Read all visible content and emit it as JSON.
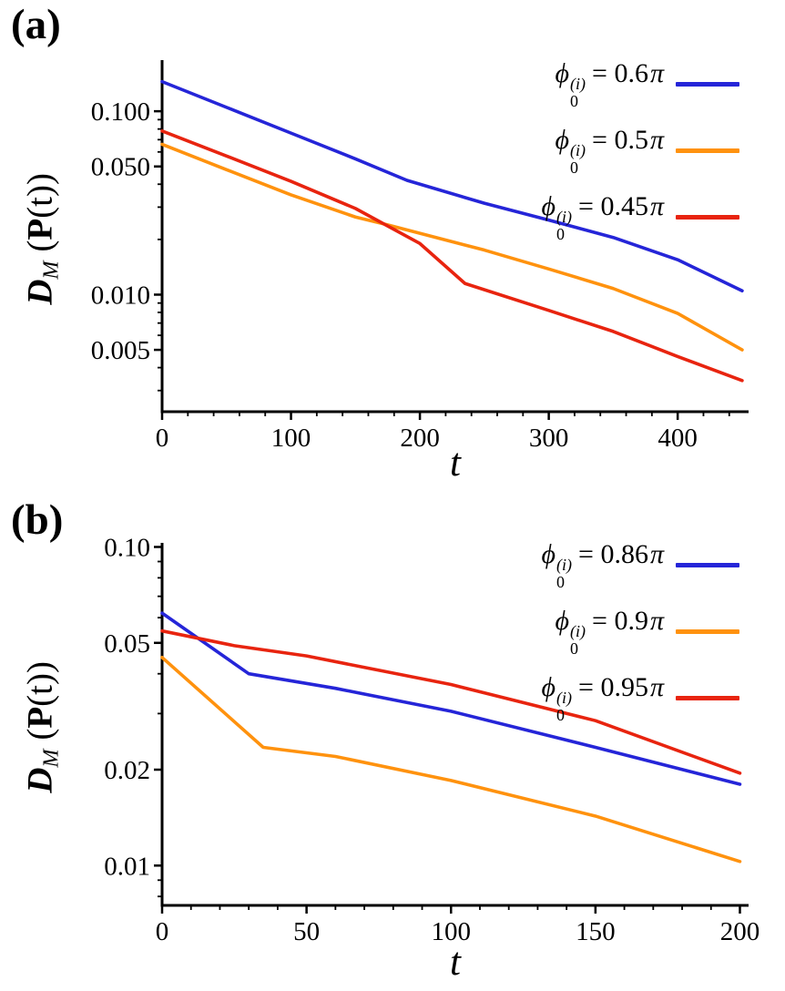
{
  "page": {
    "background": "#ffffff"
  },
  "colors": {
    "blue": "#2525d8",
    "orange": "#ff920e",
    "red": "#e8240f",
    "axis": "#000000"
  },
  "chart_data": [
    {
      "type": "line",
      "panel_label": "(a)",
      "xlabel": "t",
      "ylabel": {
        "d": "D",
        "sub": "M",
        "open": " (",
        "p": "P",
        "close": "(t))"
      },
      "xscale": "linear",
      "yscale": "log",
      "xlim": [
        0,
        455
      ],
      "ylim": [
        0.0023,
        0.19
      ],
      "grid": false,
      "legend_position": "top-right",
      "xticks": [
        {
          "v": 0,
          "label": "0"
        },
        {
          "v": 100,
          "label": "100"
        },
        {
          "v": 200,
          "label": "200"
        },
        {
          "v": 300,
          "label": "300"
        },
        {
          "v": 400,
          "label": "400"
        }
      ],
      "xminor_step": 20,
      "yticks": [
        {
          "v": 0.1,
          "label": "0.100"
        },
        {
          "v": 0.05,
          "label": "0.050"
        },
        {
          "v": 0.01,
          "label": "0.010"
        },
        {
          "v": 0.005,
          "label": "0.005"
        }
      ],
      "series": [
        {
          "name": "phi0-0.6pi",
          "color": "#2525d8",
          "legend": {
            "sym": "ϕ",
            "sub": "0",
            "sup": "(i)",
            "rhs": "= 0.6",
            "pi": "π"
          },
          "x": [
            0,
            50,
            100,
            150,
            190,
            250,
            300,
            350,
            400,
            450
          ],
          "y": [
            0.145,
            0.105,
            0.076,
            0.055,
            0.042,
            0.0315,
            0.0255,
            0.0205,
            0.0155,
            0.0105
          ]
        },
        {
          "name": "phi0-0.5pi",
          "color": "#ff920e",
          "legend": {
            "sym": "ϕ",
            "sub": "0",
            "sup": "(i)",
            "rhs": "= 0.5",
            "pi": "π"
          },
          "x": [
            0,
            50,
            100,
            150,
            175,
            250,
            300,
            350,
            400,
            450
          ],
          "y": [
            0.066,
            0.048,
            0.035,
            0.0265,
            0.024,
            0.0175,
            0.0138,
            0.0108,
            0.0079,
            0.005
          ]
        },
        {
          "name": "phi0-0.45pi",
          "color": "#e8240f",
          "legend": {
            "sym": "ϕ",
            "sub": "0",
            "sup": "(i)",
            "rhs": "= 0.45",
            "pi": "π"
          },
          "x": [
            0,
            50,
            100,
            150,
            200,
            235,
            300,
            350,
            400,
            450
          ],
          "y": [
            0.078,
            0.057,
            0.0415,
            0.0295,
            0.019,
            0.0115,
            0.0082,
            0.0063,
            0.0046,
            0.0034
          ]
        }
      ]
    },
    {
      "type": "line",
      "panel_label": "(b)",
      "xlabel": "t",
      "ylabel": {
        "d": "D",
        "sub": "M",
        "open": " (",
        "p": "P",
        "close": "(t))"
      },
      "xscale": "linear",
      "yscale": "log",
      "xlim": [
        0,
        203
      ],
      "ylim": [
        0.0075,
        0.103
      ],
      "grid": false,
      "legend_position": "top-right",
      "xticks": [
        {
          "v": 0,
          "label": "0"
        },
        {
          "v": 50,
          "label": "50"
        },
        {
          "v": 100,
          "label": "100"
        },
        {
          "v": 150,
          "label": "150"
        },
        {
          "v": 200,
          "label": "200"
        }
      ],
      "xminor_step": 10,
      "yticks": [
        {
          "v": 0.1,
          "label": "0.10"
        },
        {
          "v": 0.05,
          "label": "0.05"
        },
        {
          "v": 0.02,
          "label": "0.02"
        },
        {
          "v": 0.01,
          "label": "0.01"
        }
      ],
      "series": [
        {
          "name": "phi0-0.86pi",
          "color": "#2525d8",
          "legend": {
            "sym": "ϕ",
            "sub": "0",
            "sup": "(i)",
            "rhs": "= 0.86",
            "pi": "π"
          },
          "x": [
            0,
            30,
            60,
            100,
            150,
            200
          ],
          "y": [
            0.062,
            0.04,
            0.036,
            0.0305,
            0.0235,
            0.018
          ]
        },
        {
          "name": "phi0-0.9pi",
          "color": "#ff920e",
          "legend": {
            "sym": "ϕ",
            "sub": "0",
            "sup": "(i)",
            "rhs": "= 0.9",
            "pi": "π"
          },
          "x": [
            0,
            35,
            60,
            100,
            150,
            200
          ],
          "y": [
            0.045,
            0.0235,
            0.022,
            0.0185,
            0.0143,
            0.0103
          ]
        },
        {
          "name": "phi0-0.95pi",
          "color": "#e8240f",
          "legend": {
            "sym": "ϕ",
            "sub": "0",
            "sup": "(i)",
            "rhs": "= 0.95",
            "pi": "π"
          },
          "x": [
            0,
            25,
            50,
            100,
            150,
            200
          ],
          "y": [
            0.0545,
            0.049,
            0.0455,
            0.037,
            0.0285,
            0.0195
          ]
        }
      ]
    }
  ]
}
